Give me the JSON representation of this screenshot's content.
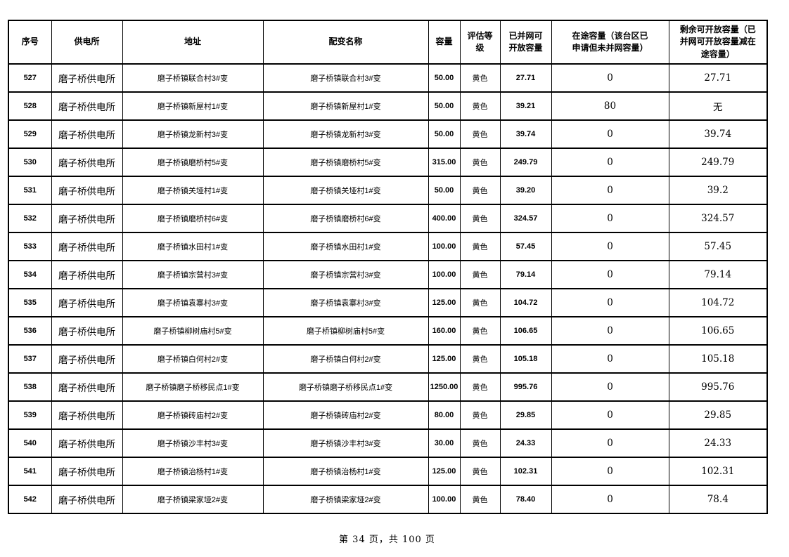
{
  "page": {
    "footer": {
      "text": "第 34 页，共 100 页"
    }
  },
  "table": {
    "columns": [
      "序号",
      "供电所",
      "地址",
      "配变名称",
      "容量",
      "评估等级",
      "已并网可开放容量",
      "在途容量（该台区已申请但未并网容量）",
      "剩余可开放容量（已并网可开放容量减在途容量）"
    ],
    "rows": [
      {
        "serial": "527",
        "station": "磨子桥供电所",
        "address": "磨子桥镇联合村3#变",
        "name": "磨子桥镇联合村3#变",
        "capacity": "50.00",
        "grade": "黄色",
        "connected": "27.71",
        "transit": "0",
        "remaining": "27.71"
      },
      {
        "serial": "528",
        "station": "磨子桥供电所",
        "address": "磨子桥镇新屋村1#变",
        "name": "磨子桥镇新屋村1#变",
        "capacity": "50.00",
        "grade": "黄色",
        "connected": "39.21",
        "transit": "80",
        "remaining": "无"
      },
      {
        "serial": "529",
        "station": "磨子桥供电所",
        "address": "磨子桥镇龙新村3#变",
        "name": "磨子桥镇龙新村3#变",
        "capacity": "50.00",
        "grade": "黄色",
        "connected": "39.74",
        "transit": "0",
        "remaining": "39.74"
      },
      {
        "serial": "530",
        "station": "磨子桥供电所",
        "address": "磨子桥镇磨桥村5#变",
        "name": "磨子桥镇磨桥村5#变",
        "capacity": "315.00",
        "grade": "黄色",
        "connected": "249.79",
        "transit": "0",
        "remaining": "249.79"
      },
      {
        "serial": "531",
        "station": "磨子桥供电所",
        "address": "磨子桥镇关垭村1#变",
        "name": "磨子桥镇关垭村1#变",
        "capacity": "50.00",
        "grade": "黄色",
        "connected": "39.20",
        "transit": "0",
        "remaining": "39.2"
      },
      {
        "serial": "532",
        "station": "磨子桥供电所",
        "address": "磨子桥镇磨桥村6#变",
        "name": "磨子桥镇磨桥村6#变",
        "capacity": "400.00",
        "grade": "黄色",
        "connected": "324.57",
        "transit": "0",
        "remaining": "324.57"
      },
      {
        "serial": "533",
        "station": "磨子桥供电所",
        "address": "磨子桥镇水田村1#变",
        "name": "磨子桥镇水田村1#变",
        "capacity": "100.00",
        "grade": "黄色",
        "connected": "57.45",
        "transit": "0",
        "remaining": "57.45"
      },
      {
        "serial": "534",
        "station": "磨子桥供电所",
        "address": "磨子桥镇宗营村3#变",
        "name": "磨子桥镇宗营村3#变",
        "capacity": "100.00",
        "grade": "黄色",
        "connected": "79.14",
        "transit": "0",
        "remaining": "79.14"
      },
      {
        "serial": "535",
        "station": "磨子桥供电所",
        "address": "磨子桥镇袁寨村3#变",
        "name": "磨子桥镇袁寨村3#变",
        "capacity": "125.00",
        "grade": "黄色",
        "connected": "104.72",
        "transit": "0",
        "remaining": "104.72"
      },
      {
        "serial": "536",
        "station": "磨子桥供电所",
        "address": "磨子桥镇柳树庙村5#变",
        "name": "磨子桥镇柳树庙村5#变",
        "capacity": "160.00",
        "grade": "黄色",
        "connected": "106.65",
        "transit": "0",
        "remaining": "106.65"
      },
      {
        "serial": "537",
        "station": "磨子桥供电所",
        "address": "磨子桥镇白何村2#变",
        "name": "磨子桥镇白何村2#变",
        "capacity": "125.00",
        "grade": "黄色",
        "connected": "105.18",
        "transit": "0",
        "remaining": "105.18"
      },
      {
        "serial": "538",
        "station": "磨子桥供电所",
        "address": "磨子桥镇磨子桥移民点1#变",
        "name": "磨子桥镇磨子桥移民点1#变",
        "capacity": "1250.00",
        "grade": "黄色",
        "connected": "995.76",
        "transit": "0",
        "remaining": "995.76"
      },
      {
        "serial": "539",
        "station": "磨子桥供电所",
        "address": "磨子桥镇砖庙村2#变",
        "name": "磨子桥镇砖庙村2#变",
        "capacity": "80.00",
        "grade": "黄色",
        "connected": "29.85",
        "transit": "0",
        "remaining": "29.85"
      },
      {
        "serial": "540",
        "station": "磨子桥供电所",
        "address": "磨子桥镇沙丰村3#变",
        "name": "磨子桥镇沙丰村3#变",
        "capacity": "30.00",
        "grade": "黄色",
        "connected": "24.33",
        "transit": "0",
        "remaining": "24.33"
      },
      {
        "serial": "541",
        "station": "磨子桥供电所",
        "address": "磨子桥镇治杨村1#变",
        "name": "磨子桥镇治杨村1#变",
        "capacity": "125.00",
        "grade": "黄色",
        "connected": "102.31",
        "transit": "0",
        "remaining": "102.31"
      },
      {
        "serial": "542",
        "station": "磨子桥供电所",
        "address": "磨子桥镇梁家垭2#变",
        "name": "磨子桥镇梁家垭2#变",
        "capacity": "100.00",
        "grade": "黄色",
        "connected": "78.40",
        "transit": "0",
        "remaining": "78.4"
      }
    ]
  }
}
